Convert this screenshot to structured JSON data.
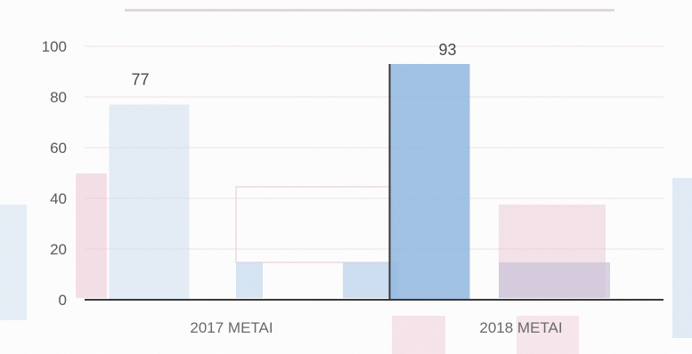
{
  "chart_data": {
    "type": "bar",
    "title": "",
    "xlabel": "",
    "ylabel": "",
    "categories": [
      "2017 METAI",
      "2018 METAI"
    ],
    "series": [
      {
        "values": [
          77,
          93
        ],
        "labels": [
          "77",
          "93"
        ],
        "color": "#8fb7e0"
      }
    ],
    "ylim": [
      0,
      100
    ],
    "yticks": [
      0,
      20,
      40,
      60,
      80,
      100
    ],
    "ytick_labels": [
      "0",
      "20",
      "40",
      "60",
      "80",
      "100"
    ],
    "grid": true,
    "legend": "none",
    "colors": {
      "bar": "#8fb7e0",
      "bar_light": "#cfe0f2",
      "accent_pink": "#e89ab6",
      "axis": "#333333",
      "grid": "#e7c9d2"
    }
  }
}
